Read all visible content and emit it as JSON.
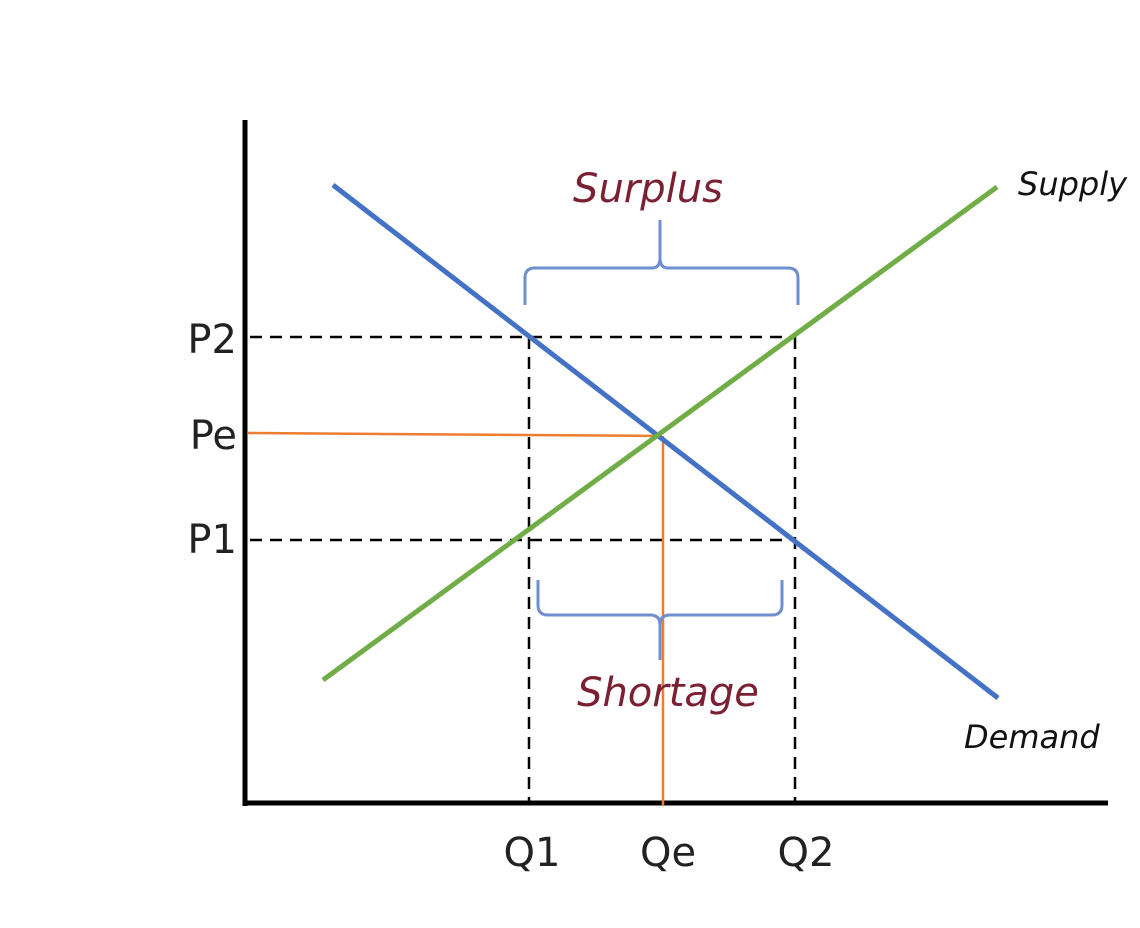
{
  "diagram": {
    "price_labels": {
      "p2": "P2",
      "pe": "Pe",
      "p1": "P1"
    },
    "quantity_labels": {
      "q1": "Q1",
      "qe": "Qe",
      "q2": "Q2"
    },
    "curves": {
      "supply": {
        "label": "Supply",
        "color": "#70ad47"
      },
      "demand": {
        "label": "Demand",
        "color": "#4472c4"
      }
    },
    "regions": {
      "surplus": {
        "label": "Surplus"
      },
      "shortage": {
        "label": "Shortage"
      }
    },
    "colors": {
      "equilibrium_lines": "#ed7d31",
      "brace": "#6f8fd0",
      "region_text": "#7b2033",
      "axes": "#000000"
    }
  }
}
